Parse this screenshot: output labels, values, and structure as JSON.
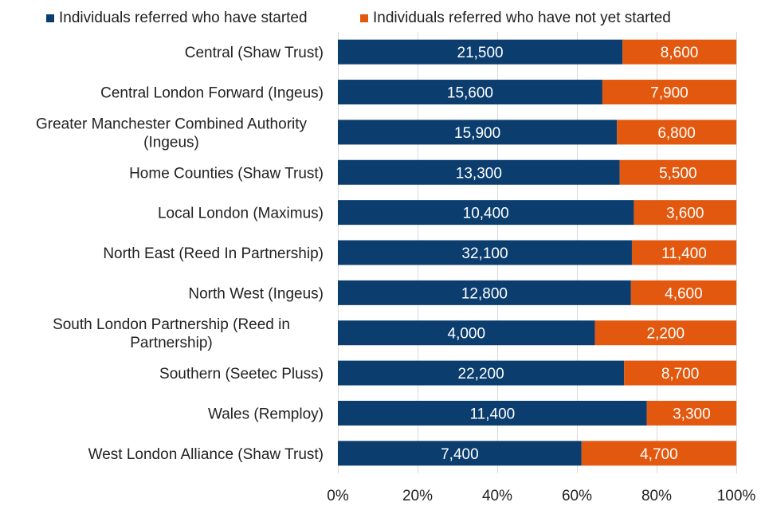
{
  "chart_data": {
    "type": "bar",
    "orientation": "horizontal",
    "stacked": "percent",
    "categories": [
      [
        "Central (Shaw Trust)"
      ],
      [
        "Central London Forward (Ingeus)"
      ],
      [
        "Greater Manchester Combined Authority",
        "(Ingeus)"
      ],
      [
        "Home Counties (Shaw Trust)"
      ],
      [
        "Local London (Maximus)"
      ],
      [
        "North East (Reed In Partnership)"
      ],
      [
        "North West (Ingeus)"
      ],
      [
        "South London Partnership (Reed in",
        "Partnership)"
      ],
      [
        "Southern (Seetec Pluss)"
      ],
      [
        "Wales (Remploy)"
      ],
      [
        "West London Alliance (Shaw Trust)"
      ]
    ],
    "series": [
      {
        "name": "Individuals referred who have started",
        "color": "#0b3d6e",
        "values": [
          21500,
          15600,
          15900,
          13300,
          10400,
          32100,
          12800,
          4000,
          22200,
          11400,
          7400
        ],
        "labels": [
          "21,500",
          "15,600",
          "15,900",
          "13,300",
          "10,400",
          "32,100",
          "12,800",
          "4,000",
          "22,200",
          "11,400",
          "7,400"
        ]
      },
      {
        "name": "Individuals referred who have not yet started",
        "color": "#e2580e",
        "values": [
          8600,
          7900,
          6800,
          5500,
          3600,
          11400,
          4600,
          2200,
          8700,
          3300,
          4700
        ],
        "labels": [
          "8,600",
          "7,900",
          "6,800",
          "5,500",
          "3,600",
          "11,400",
          "4,600",
          "2,200",
          "8,700",
          "3,300",
          "4,700"
        ]
      }
    ],
    "xlim": [
      0,
      100
    ],
    "xticks": [
      0,
      20,
      40,
      60,
      80,
      100
    ],
    "xtick_labels": [
      "0%",
      "20%",
      "40%",
      "60%",
      "80%",
      "100%"
    ],
    "grid": true,
    "legend_position": "top"
  }
}
